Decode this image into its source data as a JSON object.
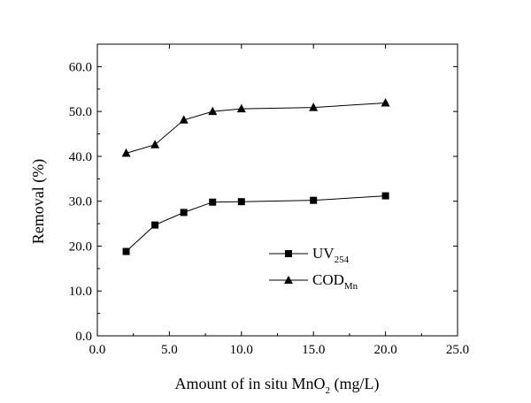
{
  "chart_data": {
    "type": "line",
    "x": [
      2,
      4,
      6,
      8,
      10,
      15,
      20
    ],
    "series": [
      {
        "name": "UV",
        "name_sub": "254",
        "marker": "square",
        "values": [
          18.8,
          24.7,
          27.5,
          29.8,
          29.9,
          30.2,
          31.2
        ]
      },
      {
        "name": "COD",
        "name_sub": "Mn",
        "marker": "triangle",
        "values": [
          40.7,
          42.6,
          48.1,
          50.0,
          50.6,
          50.9,
          51.9
        ]
      }
    ],
    "xlabel": {
      "main": "Amount of in situ MnO",
      "sub": "2",
      "tail": " (mg/L)"
    },
    "ylabel": "Removal (%)",
    "xlim": [
      0,
      25
    ],
    "ylim": [
      0,
      65
    ],
    "xticks": [
      "0.0",
      "5.0",
      "10.0",
      "15.0",
      "20.0",
      "25.0"
    ],
    "yticks": [
      "0.0",
      "10.0",
      "20.0",
      "30.0",
      "40.0",
      "50.0",
      "60.0"
    ],
    "xtick_values": [
      0,
      5,
      10,
      15,
      20,
      25
    ],
    "ytick_values": [
      0,
      10,
      20,
      30,
      40,
      50,
      60
    ],
    "grid": false,
    "legend_position": "center-right",
    "color": "#000000"
  }
}
